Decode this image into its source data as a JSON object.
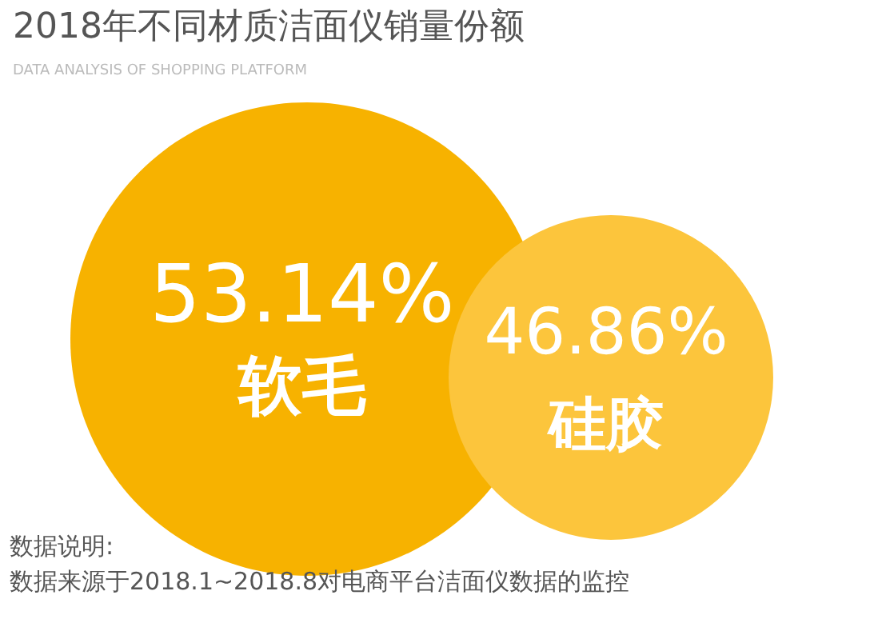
{
  "chart_data": {
    "type": "other",
    "title": "2018年不同材质洁面仪销量份额",
    "subtitle": "DATA ANALYSIS OF SHOPPING PLATFORM",
    "categories": [
      "软毛",
      "硅胶"
    ],
    "values": [
      53.14,
      46.86
    ],
    "value_labels": [
      "53.14%",
      "46.86%"
    ],
    "colors": [
      "#f7b200",
      "#fcc53c"
    ],
    "annotations": [
      "数据说明:",
      "数据来源于2018.1~2018.8对电商平台洁面仪数据的监控"
    ]
  }
}
